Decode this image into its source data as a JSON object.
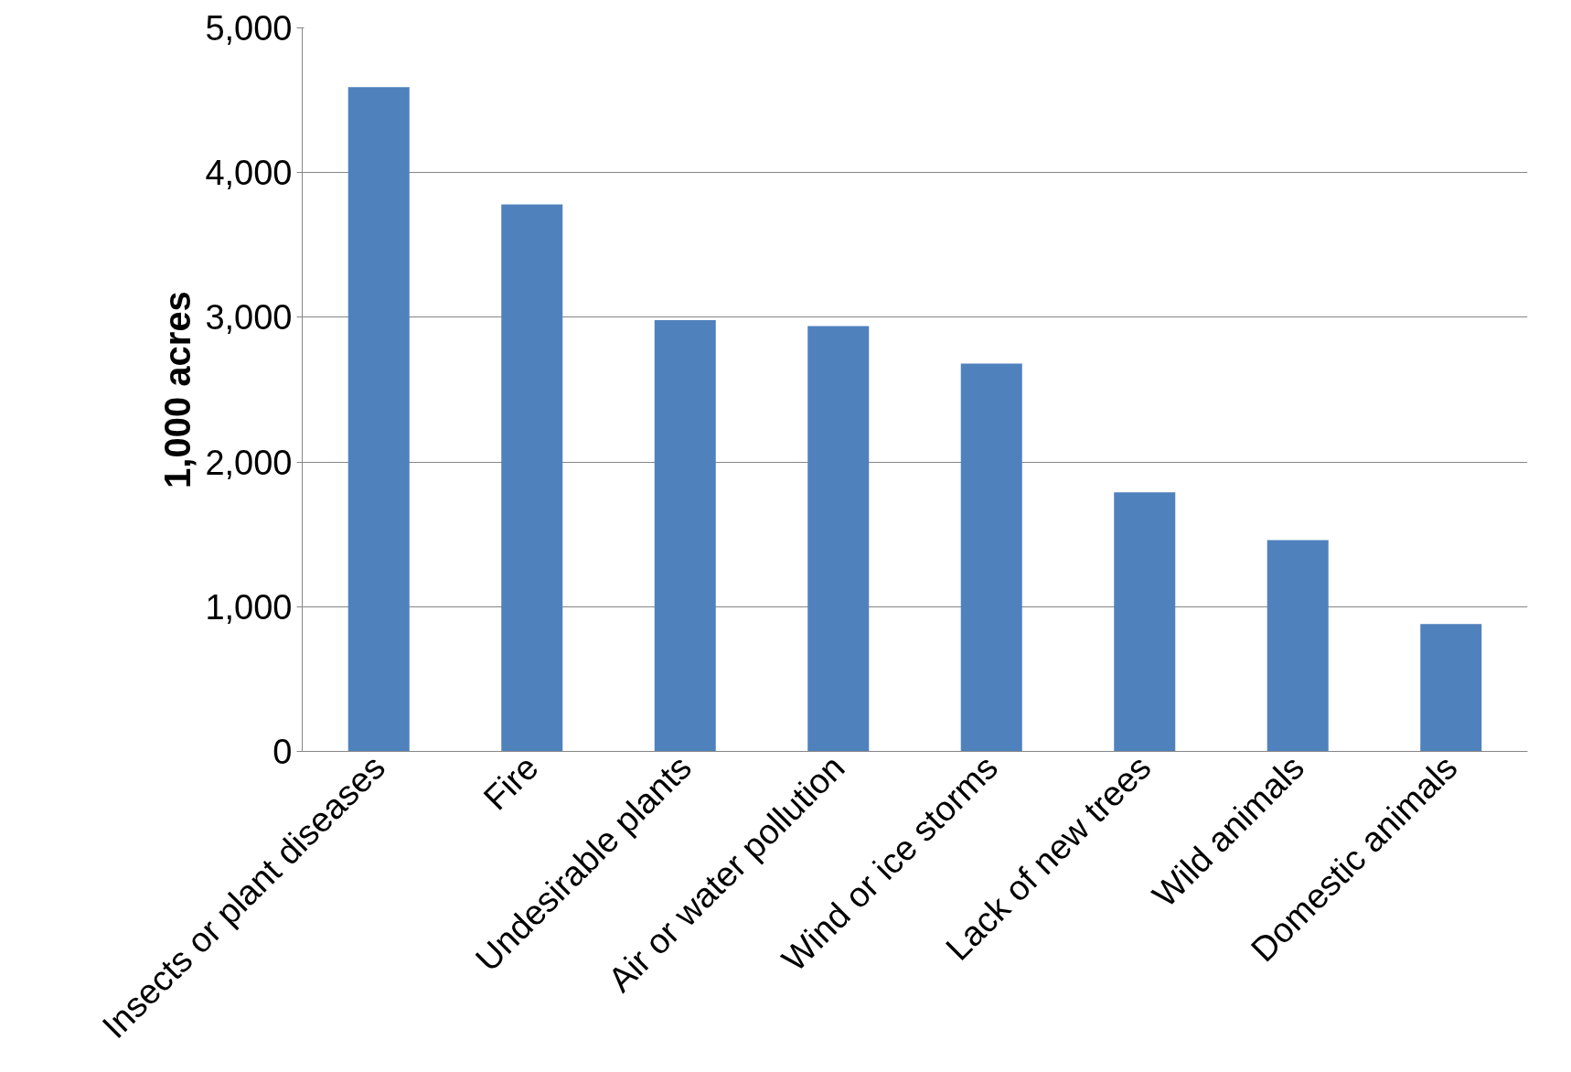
{
  "chart_data": {
    "type": "bar",
    "ylabel": "1,000 acres",
    "categories": [
      "Insects or plant diseases",
      "Fire",
      "Undesirable plants",
      "Air or water pollution",
      "Wind or ice storms",
      "Lack of new trees",
      "Wild animals",
      "Domestic animals"
    ],
    "values": [
      4590,
      3780,
      2980,
      2940,
      2680,
      1790,
      1460,
      880
    ],
    "color": "#4f81bd",
    "ylim": [
      0,
      5000
    ],
    "yticks": [
      {
        "value": 0,
        "label": "0"
      },
      {
        "value": 1000,
        "label": "1,000"
      },
      {
        "value": 2000,
        "label": "2,000"
      },
      {
        "value": 3000,
        "label": "3,000"
      },
      {
        "value": 4000,
        "label": "4,000"
      },
      {
        "value": 5000,
        "label": "5,000"
      }
    ],
    "grid": "y"
  }
}
